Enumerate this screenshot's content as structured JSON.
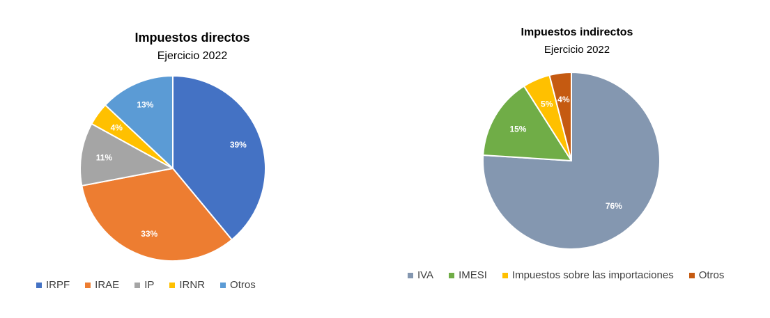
{
  "chart_data": [
    {
      "type": "pie",
      "title": "Impuestos directos",
      "subtitle": "Ejercicio 2022",
      "legend_position": "bottom",
      "labels": [
        "IRPF",
        "IRAE",
        "IP",
        "IRNR",
        "Otros"
      ],
      "values": [
        39,
        33,
        11,
        4,
        13
      ],
      "data_labels": [
        "39%",
        "33%",
        "11%",
        "4%",
        "13%"
      ],
      "colors": [
        "#4472C4",
        "#ED7D31",
        "#A5A5A5",
        "#FFC000",
        "#5B9BD5"
      ]
    },
    {
      "type": "pie",
      "title": "Impuestos indirectos",
      "subtitle": "Ejercicio 2022",
      "legend_position": "bottom",
      "labels": [
        "IVA",
        "IMESI",
        "Impuestos sobre las importaciones",
        "Otros"
      ],
      "values": [
        76,
        15,
        5,
        4
      ],
      "data_labels": [
        "76%",
        "15%",
        "5%",
        "4%"
      ],
      "colors": [
        "#8497B0",
        "#70AD47",
        "#FFC000",
        "#C55A11"
      ]
    }
  ]
}
